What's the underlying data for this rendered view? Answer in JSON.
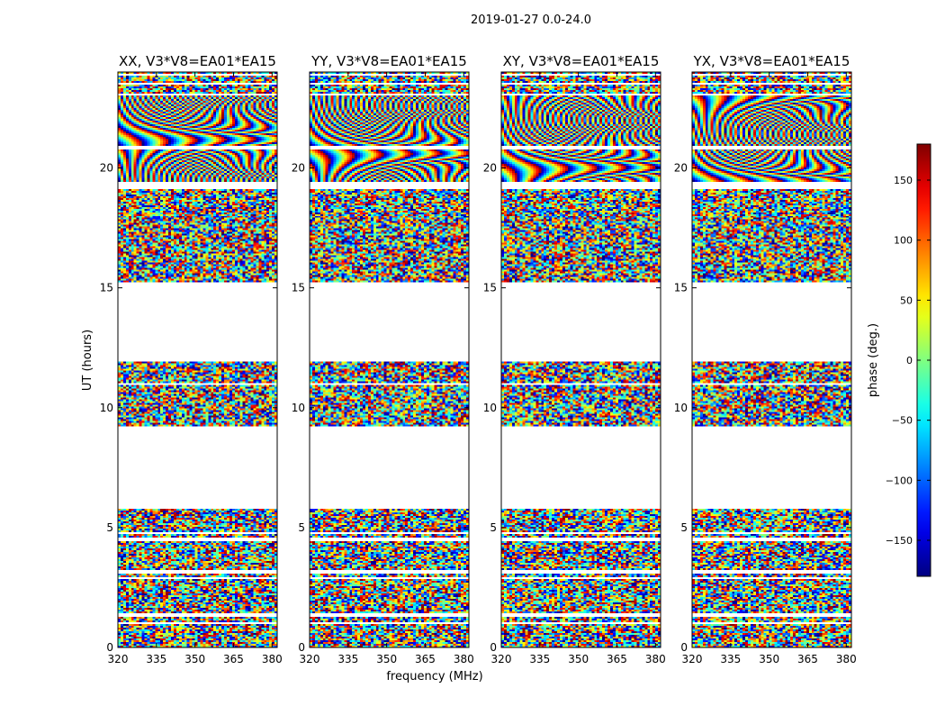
{
  "suptitle": "2019-01-27 0.0-24.0",
  "chart_data": {
    "type": "heatmap",
    "title": "2019-01-27 0.0-24.0",
    "xlabel": "frequency (MHz)",
    "ylabel": "UT (hours)",
    "xlim": [
      320,
      382
    ],
    "ylim": [
      0,
      24
    ],
    "x_ticks": [
      320,
      335,
      350,
      365,
      380
    ],
    "y_ticks": [
      0,
      5,
      10,
      15,
      20
    ],
    "colorbar": {
      "label": "phase (deg.)",
      "range": [
        -180,
        180
      ],
      "ticks": [
        150,
        100,
        50,
        0,
        -50,
        -100,
        -150
      ],
      "tick_labels": [
        "150",
        "100",
        "50",
        "0",
        "−50",
        "−100",
        "−150"
      ],
      "colormap": "jet"
    },
    "panels": [
      {
        "title": "XX, V3*V8=EA01*EA15"
      },
      {
        "title": "YY, V3*V8=EA01*EA15"
      },
      {
        "title": "XY, V3*V8=EA01*EA15"
      },
      {
        "title": "YX, V3*V8=EA01*EA15"
      }
    ],
    "data_bands_hours": [
      [
        0.0,
        0.95
      ],
      [
        1.05,
        1.3
      ],
      [
        1.45,
        2.85
      ],
      [
        2.95,
        3.1
      ],
      [
        3.2,
        4.45
      ],
      [
        4.6,
        4.7
      ],
      [
        4.8,
        5.8
      ],
      [
        9.2,
        10.95
      ],
      [
        11.05,
        11.9
      ],
      [
        15.25,
        19.15
      ],
      [
        19.4,
        20.75
      ],
      [
        20.9,
        23.0
      ],
      [
        23.1,
        23.45
      ],
      [
        23.55,
        23.85
      ],
      [
        23.9,
        24.0
      ]
    ],
    "empty_bands_hours": [
      [
        5.8,
        9.2
      ],
      [
        11.9,
        15.25
      ]
    ]
  }
}
